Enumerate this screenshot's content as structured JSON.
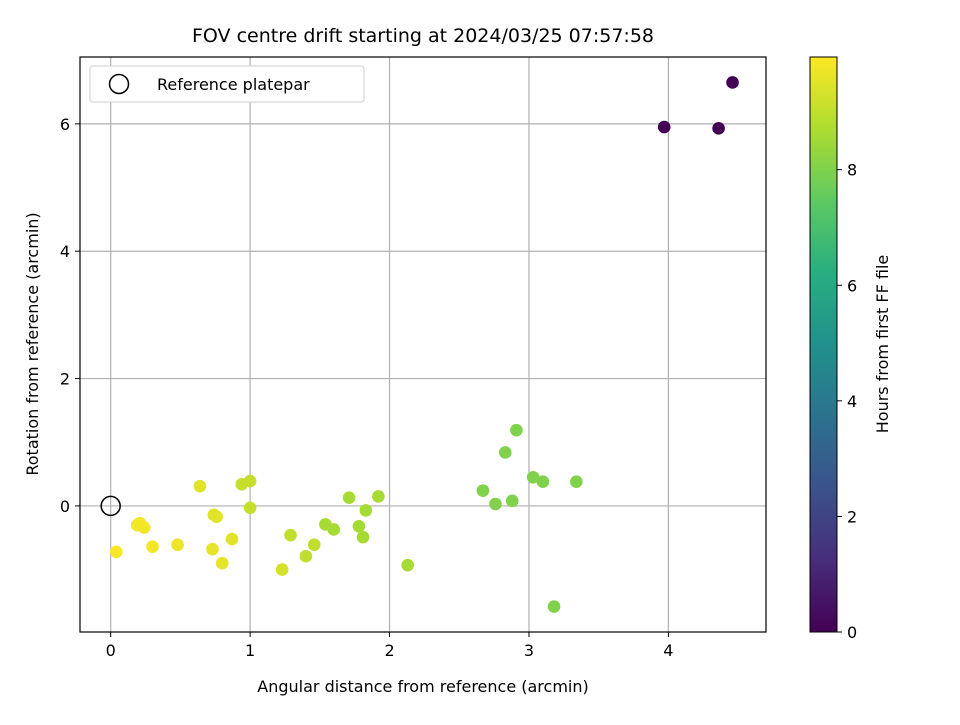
{
  "chart_data": {
    "type": "scatter",
    "title": "FOV centre drift starting at 2024/03/25 07:57:58",
    "xlabel": "Angular distance from reference (arcmin)",
    "ylabel": "Rotation from reference (arcmin)",
    "xlim": [
      -0.22,
      4.7
    ],
    "ylim": [
      -1.98,
      7.05
    ],
    "xticks": [
      0,
      1,
      2,
      3,
      4
    ],
    "xtick_labels": [
      "0",
      "1",
      "2",
      "3",
      "4"
    ],
    "yticks": [
      0,
      2,
      4,
      6
    ],
    "ytick_labels": [
      "0",
      "2",
      "4",
      "6"
    ],
    "grid": true,
    "legend": {
      "location": "upper left",
      "entries": [
        {
          "label": "Reference platepar",
          "marker": "open-circle",
          "edge_color": "#000000"
        }
      ]
    },
    "reference_point": {
      "x": 0.0,
      "y": 0.0
    },
    "colorbar": {
      "label": "Hours from first FF file",
      "range": [
        0,
        9.95
      ],
      "ticks": [
        0,
        2,
        4,
        6,
        8
      ],
      "tick_labels": [
        "0",
        "2",
        "4",
        "6",
        "8"
      ],
      "colormap": "viridis"
    },
    "series": [
      {
        "points": [
          {
            "x": 3.97,
            "y": 5.95,
            "c": 0.0
          },
          {
            "x": 4.36,
            "y": 5.93,
            "c": 0.0
          },
          {
            "x": 4.46,
            "y": 6.65,
            "c": 0.0
          },
          {
            "x": 2.67,
            "y": 0.24,
            "c": 8.0
          },
          {
            "x": 2.76,
            "y": 0.03,
            "c": 8.0
          },
          {
            "x": 2.83,
            "y": 0.84,
            "c": 8.0
          },
          {
            "x": 2.88,
            "y": 0.08,
            "c": 8.0
          },
          {
            "x": 2.91,
            "y": 1.19,
            "c": 8.0
          },
          {
            "x": 3.03,
            "y": 0.45,
            "c": 8.0
          },
          {
            "x": 3.1,
            "y": 0.38,
            "c": 8.0
          },
          {
            "x": 3.34,
            "y": 0.38,
            "c": 8.0
          },
          {
            "x": 3.18,
            "y": -1.58,
            "c": 8.0
          },
          {
            "x": 1.71,
            "y": 0.13,
            "c": 8.6
          },
          {
            "x": 1.92,
            "y": 0.15,
            "c": 8.6
          },
          {
            "x": 1.83,
            "y": -0.07,
            "c": 8.6
          },
          {
            "x": 1.54,
            "y": -0.29,
            "c": 8.6
          },
          {
            "x": 1.6,
            "y": -0.37,
            "c": 8.6
          },
          {
            "x": 1.78,
            "y": -0.32,
            "c": 8.6
          },
          {
            "x": 1.81,
            "y": -0.49,
            "c": 8.6
          },
          {
            "x": 2.13,
            "y": -0.93,
            "c": 8.6
          },
          {
            "x": 1.29,
            "y": -0.46,
            "c": 9.0
          },
          {
            "x": 1.46,
            "y": -0.61,
            "c": 9.0
          },
          {
            "x": 1.4,
            "y": -0.79,
            "c": 9.0
          },
          {
            "x": 1.23,
            "y": -1.0,
            "c": 9.3
          },
          {
            "x": 1.0,
            "y": 0.39,
            "c": 9.1
          },
          {
            "x": 0.94,
            "y": 0.34,
            "c": 9.1
          },
          {
            "x": 1.0,
            "y": -0.03,
            "c": 9.1
          },
          {
            "x": 0.64,
            "y": 0.31,
            "c": 9.5
          },
          {
            "x": 0.74,
            "y": -0.14,
            "c": 9.5
          },
          {
            "x": 0.76,
            "y": -0.17,
            "c": 9.5
          },
          {
            "x": 0.87,
            "y": -0.52,
            "c": 9.5
          },
          {
            "x": 0.73,
            "y": -0.68,
            "c": 9.6
          },
          {
            "x": 0.8,
            "y": -0.9,
            "c": 9.6
          },
          {
            "x": 0.48,
            "y": -0.61,
            "c": 9.7
          },
          {
            "x": 0.3,
            "y": -0.64,
            "c": 9.8
          },
          {
            "x": 0.19,
            "y": -0.3,
            "c": 9.8
          },
          {
            "x": 0.21,
            "y": -0.27,
            "c": 9.8
          },
          {
            "x": 0.24,
            "y": -0.34,
            "c": 9.8
          },
          {
            "x": 0.04,
            "y": -0.72,
            "c": 9.9
          }
        ]
      }
    ]
  }
}
